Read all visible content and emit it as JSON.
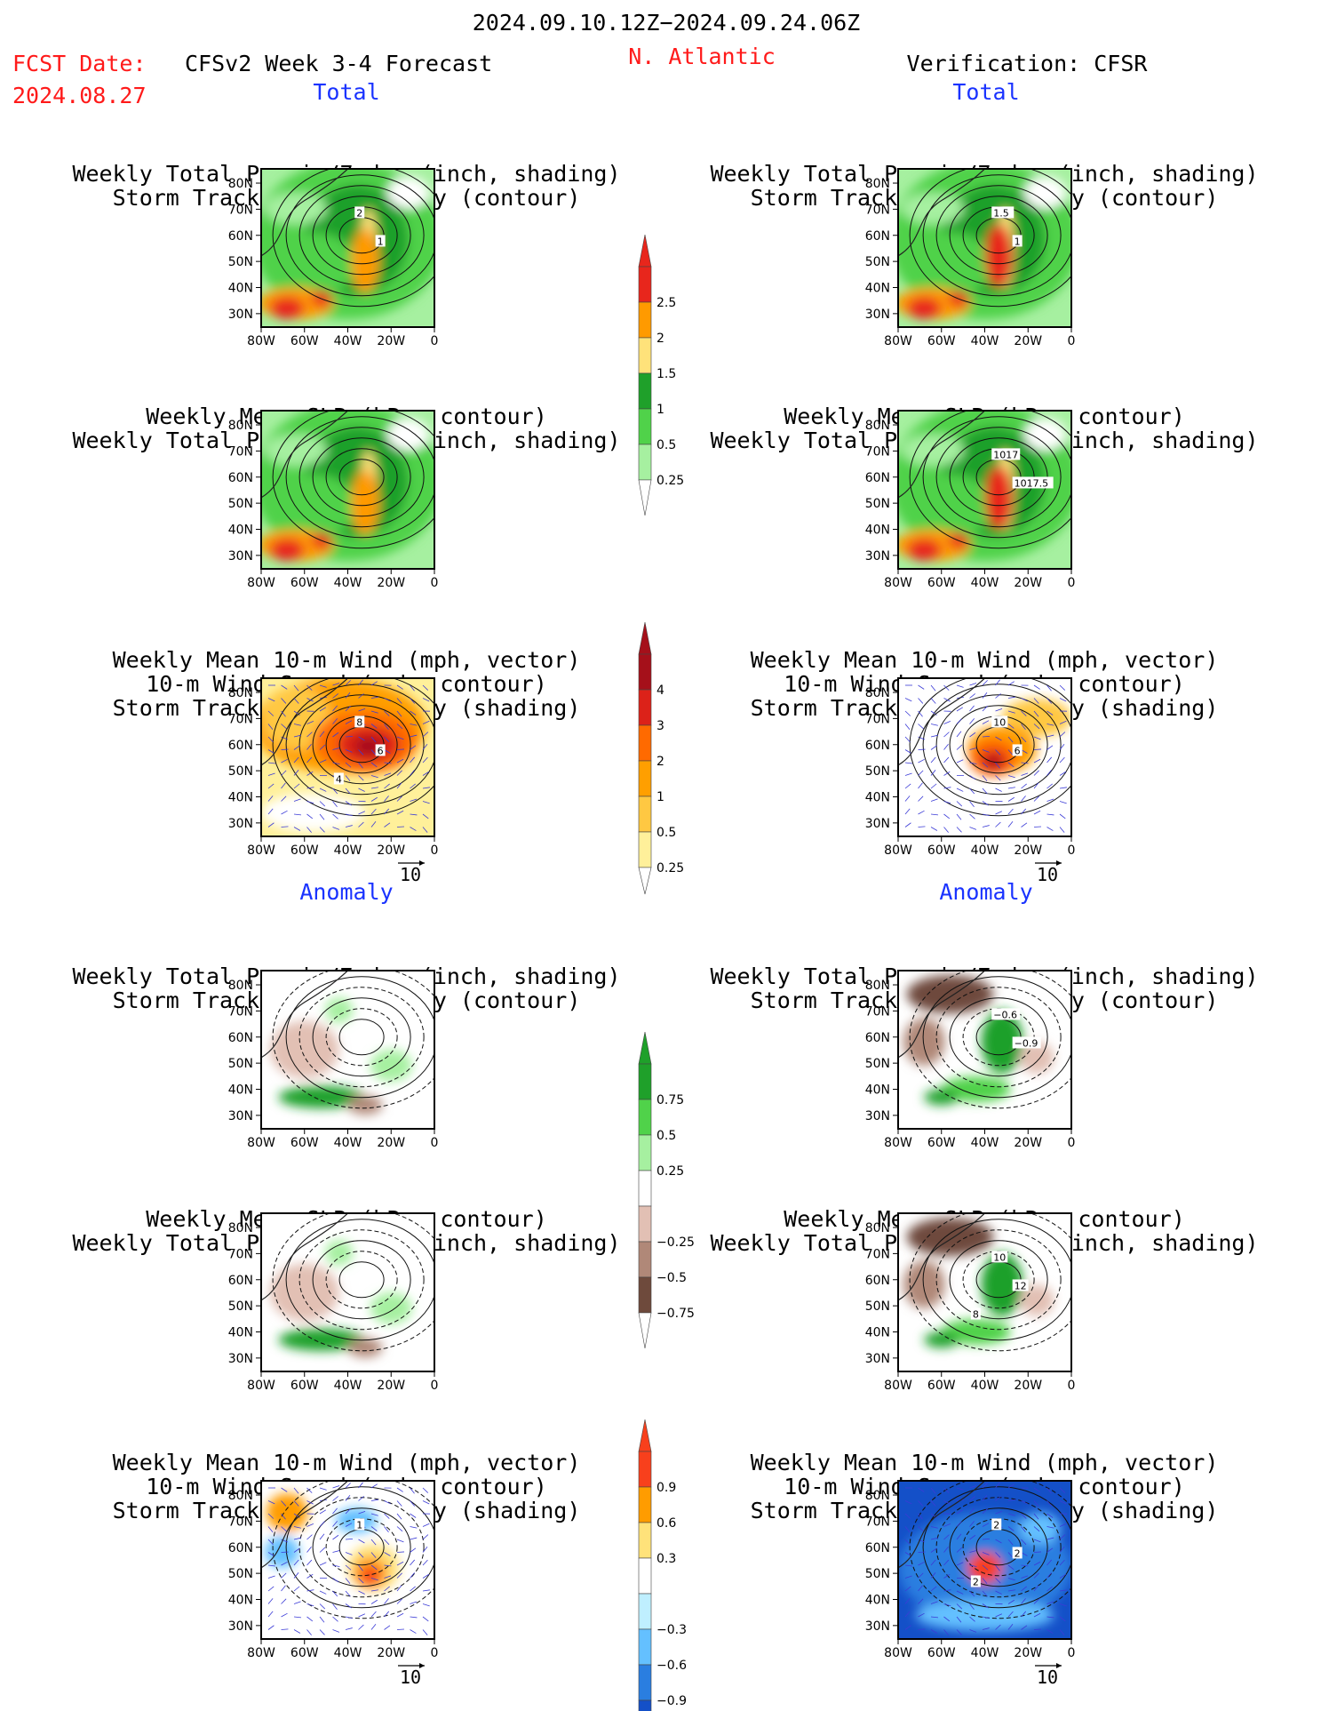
{
  "header": {
    "date_range": "2024.09.10.12Z−2024.09.24.06Z",
    "fcst_label": "FCST Date:",
    "fcst_date": "2024.08.27",
    "model": "CFSv2 Week 3-4 Forecast",
    "region": "N. Atlantic",
    "verification": "Verification: CFSR"
  },
  "sections": {
    "total": "Total",
    "anomaly": "Anomaly"
  },
  "panel_titles": {
    "precip_storm": [
      "Weekly Total Precip/7-day (inch, shading)",
      "Storm Track Density/7-day (contour)"
    ],
    "slp_precip": [
      "Weekly Mean SLP (hPa, contour)",
      "Weekly Total Precip/7-day (inch, shading)"
    ],
    "wind_storm": [
      "Weekly Mean 10-m Wind (mph, vector)",
      "10-m Wind Speed (mph, contour)",
      "Storm Track Density/7-day (shading)"
    ]
  },
  "axes": {
    "lat_ticks": [
      "80N",
      "70N",
      "60N",
      "50N",
      "40N",
      "30N"
    ],
    "lon_ticks": [
      "80W",
      "60W",
      "40W",
      "20W",
      "0"
    ]
  },
  "vector_ref": "10",
  "colorbars": {
    "total_precip": {
      "labels": [
        "2.5",
        "2",
        "1.5",
        "1",
        "0.5",
        "0.25"
      ],
      "colors": [
        "#e8261c",
        "#ff9a00",
        "#ffe27a",
        "#1fa02a",
        "#50d24a",
        "#a6f0a0"
      ]
    },
    "total_storm": {
      "labels": [
        "4",
        "3",
        "2",
        "1",
        "0.5",
        "0.25"
      ],
      "colors": [
        "#a5101a",
        "#dc2219",
        "#ff6a00",
        "#ff9f00",
        "#ffc842",
        "#fff09a"
      ]
    },
    "anom_precip": {
      "labels": [
        "0.75",
        "0.5",
        "0.25",
        "−0.25",
        "−0.5",
        "−0.75"
      ],
      "colors": [
        "#1fa02a",
        "#50d24a",
        "#a6f0a0",
        "#ffffff",
        "#e2c0b4",
        "#b08878",
        "#6e4a3c"
      ]
    },
    "anom_storm": {
      "labels": [
        "0.9",
        "0.6",
        "0.3",
        "−0.3",
        "−0.6",
        "−0.9"
      ],
      "colors": [
        "#f8401c",
        "#ff9c00",
        "#ffe27a",
        "#ffffff",
        "#bfefff",
        "#64c0ff",
        "#2a7ee0",
        "#1450c8"
      ]
    }
  },
  "contour_labels": {
    "fc_total_precip": [
      "2",
      "1"
    ],
    "ob_total_precip": [
      "1.5",
      "1"
    ],
    "ob_total_slp": [
      "1017",
      "1017.5"
    ],
    "fc_total_wind": [
      "8",
      "6",
      "4"
    ],
    "ob_total_wind": [
      "10",
      "6"
    ],
    "ob_anom_precip": [
      "−0.6",
      "−0.9"
    ],
    "ob_anom_slp": [
      "10",
      "12",
      "8"
    ],
    "fc_anom_wind": [
      "1"
    ],
    "ob_anom_wind": [
      "2",
      "2",
      "2"
    ]
  },
  "chart_data": [
    {
      "type": "heatmap",
      "id": "forecast-total-precip-storm",
      "title": [
        "Weekly Total Precip/7-day (inch, shading)",
        "Storm Track Density/7-day (contour)"
      ],
      "xlim": [
        "80W",
        "0"
      ],
      "ylim": [
        "25N",
        "85N"
      ]
    },
    {
      "type": "heatmap",
      "id": "forecast-total-slp-precip",
      "title": [
        "Weekly Mean SLP (hPa, contour)",
        "Weekly Total Precip/7-day (inch, shading)"
      ],
      "xlim": [
        "80W",
        "0"
      ],
      "ylim": [
        "25N",
        "85N"
      ]
    },
    {
      "type": "heatmap",
      "id": "forecast-total-wind-storm",
      "title": [
        "Weekly Mean 10-m Wind (mph, vector)",
        "10-m Wind Speed (mph, contour)",
        "Storm Track Density/7-day (shading)"
      ],
      "xlim": [
        "80W",
        "0"
      ],
      "ylim": [
        "25N",
        "85N"
      ]
    },
    {
      "type": "heatmap",
      "id": "verif-total-precip-storm",
      "xlim": [
        "80W",
        "0"
      ],
      "ylim": [
        "25N",
        "85N"
      ]
    },
    {
      "type": "heatmap",
      "id": "verif-total-slp-precip",
      "xlim": [
        "80W",
        "0"
      ],
      "ylim": [
        "25N",
        "85N"
      ]
    },
    {
      "type": "heatmap",
      "id": "verif-total-wind-storm",
      "xlim": [
        "80W",
        "0"
      ],
      "ylim": [
        "25N",
        "85N"
      ]
    },
    {
      "type": "heatmap",
      "id": "forecast-anom-precip-storm",
      "xlim": [
        "80W",
        "0"
      ],
      "ylim": [
        "25N",
        "85N"
      ]
    },
    {
      "type": "heatmap",
      "id": "forecast-anom-slp-precip",
      "xlim": [
        "80W",
        "0"
      ],
      "ylim": [
        "25N",
        "85N"
      ]
    },
    {
      "type": "heatmap",
      "id": "forecast-anom-wind-storm",
      "xlim": [
        "80W",
        "0"
      ],
      "ylim": [
        "25N",
        "85N"
      ]
    },
    {
      "type": "heatmap",
      "id": "verif-anom-precip-storm",
      "xlim": [
        "80W",
        "0"
      ],
      "ylim": [
        "25N",
        "85N"
      ]
    },
    {
      "type": "heatmap",
      "id": "verif-anom-slp-precip",
      "xlim": [
        "80W",
        "0"
      ],
      "ylim": [
        "25N",
        "85N"
      ]
    },
    {
      "type": "heatmap",
      "id": "verif-anom-wind-storm",
      "xlim": [
        "80W",
        "0"
      ],
      "ylim": [
        "25N",
        "85N"
      ]
    }
  ]
}
